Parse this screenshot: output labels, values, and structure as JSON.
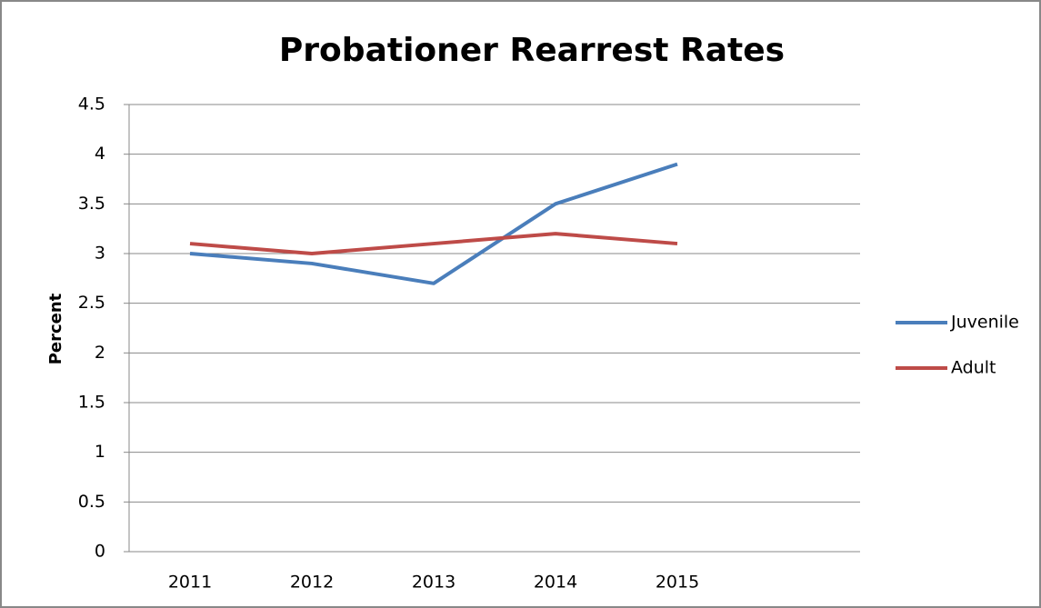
{
  "chart_data": {
    "type": "line",
    "title": "Probationer Rearrest Rates",
    "y_label": "Percent",
    "categories": [
      "2011",
      "2012",
      "2013",
      "2014",
      "2015",
      null
    ],
    "series": [
      {
        "name": "Juvenile",
        "color": "#4a7ebb",
        "values": [
          3.0,
          2.9,
          2.7,
          3.5,
          3.9,
          null
        ]
      },
      {
        "name": "Adult",
        "color": "#be4b48",
        "values": [
          3.1,
          3.0,
          3.1,
          3.2,
          3.1,
          null
        ]
      }
    ],
    "ylim": [
      0,
      4.5
    ],
    "yticks": [
      0,
      0.5,
      1,
      1.5,
      2,
      2.5,
      3,
      3.5,
      4,
      4.5
    ],
    "grid": true,
    "legend": "right"
  }
}
